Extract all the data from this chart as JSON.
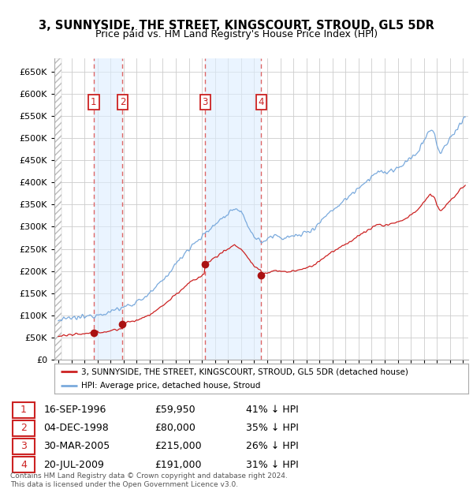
{
  "title": "3, SUNNYSIDE, THE STREET, KINGSCOURT, STROUD, GL5 5DR",
  "subtitle": "Price paid vs. HM Land Registry's House Price Index (HPI)",
  "ylim": [
    0,
    680000
  ],
  "yticks": [
    0,
    50000,
    100000,
    150000,
    200000,
    250000,
    300000,
    350000,
    400000,
    450000,
    500000,
    550000,
    600000,
    650000
  ],
  "xlim_start": 1993.7,
  "xlim_end": 2025.4,
  "sale_dates_num": [
    1996.71,
    1998.92,
    2005.25,
    2009.55
  ],
  "sale_prices": [
    59950,
    80000,
    215000,
    191000
  ],
  "sale_labels": [
    "1",
    "2",
    "3",
    "4"
  ],
  "sale_dates_str": [
    "16-SEP-1996",
    "04-DEC-1998",
    "30-MAR-2005",
    "20-JUL-2009"
  ],
  "sale_prices_str": [
    "£59,950",
    "£80,000",
    "£215,000",
    "£191,000"
  ],
  "sale_hpi_pct": [
    "41% ↓ HPI",
    "35% ↓ HPI",
    "26% ↓ HPI",
    "31% ↓ HPI"
  ],
  "hpi_line_color": "#7aaadd",
  "sale_line_color": "#cc2222",
  "sale_dot_color": "#aa1111",
  "vline_color": "#dd6666",
  "shade_color": "#ddeeff",
  "background_color": "#ffffff",
  "grid_color": "#cccccc",
  "footer_text": "Contains HM Land Registry data © Crown copyright and database right 2024.\nThis data is licensed under the Open Government Licence v3.0.",
  "legend1_label": "3, SUNNYSIDE, THE STREET, KINGSCOURT, STROUD, GL5 5DR (detached house)",
  "legend2_label": "HPI: Average price, detached house, Stroud",
  "hatch_end": 1994.25
}
